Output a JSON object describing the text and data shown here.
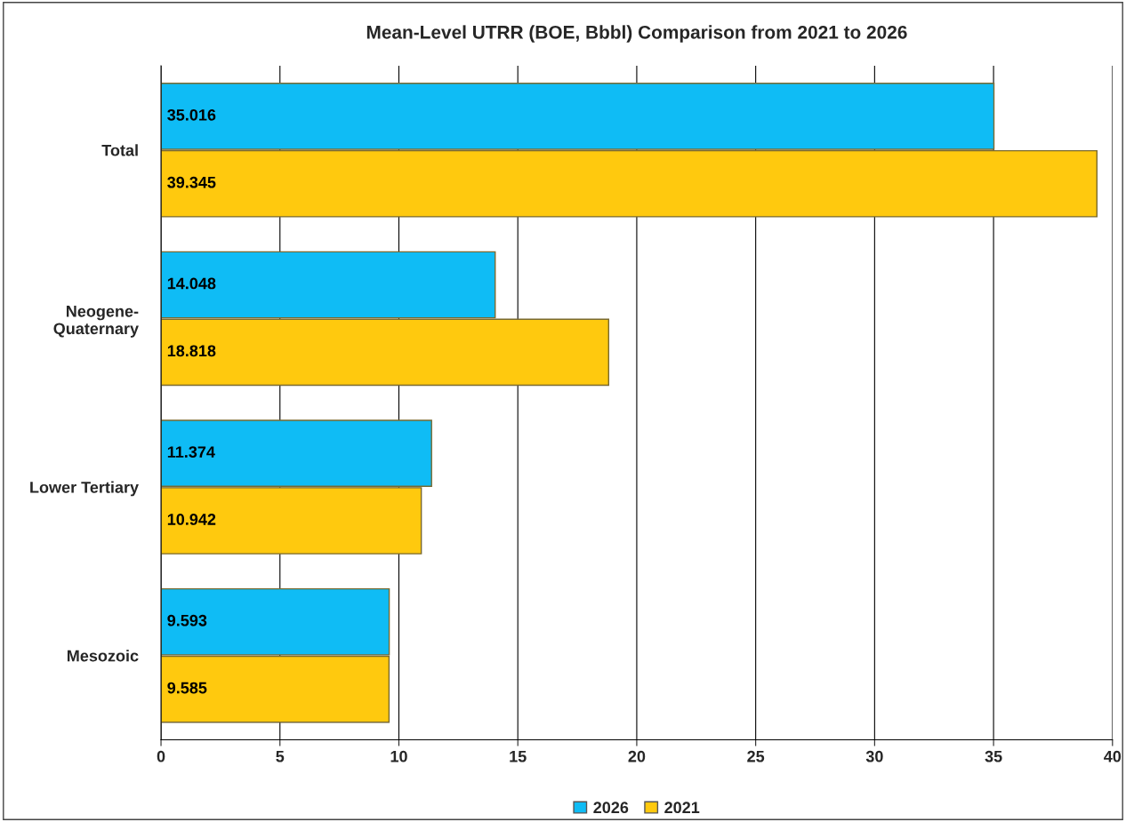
{
  "chart_data": {
    "type": "bar",
    "orientation": "horizontal",
    "title": "Mean-Level UTRR (BOE, Bbbl) Comparison from 2021 to 2026",
    "categories": [
      "Total",
      "Neogene-\nQuaternary",
      "Lower Tertiary",
      "Mesozoic"
    ],
    "series": [
      {
        "name": "2026",
        "color": "#0fbcf5",
        "values": [
          35.016,
          14.048,
          11.374,
          9.593
        ]
      },
      {
        "name": "2021",
        "color": "#ffc90e",
        "values": [
          39.345,
          18.818,
          10.942,
          9.585
        ]
      }
    ],
    "xlim": [
      0,
      40
    ],
    "xticks": [
      0,
      5,
      10,
      15,
      20,
      25,
      30,
      35,
      40
    ],
    "grid": "x",
    "legend": "bottom",
    "data_labels": true
  }
}
